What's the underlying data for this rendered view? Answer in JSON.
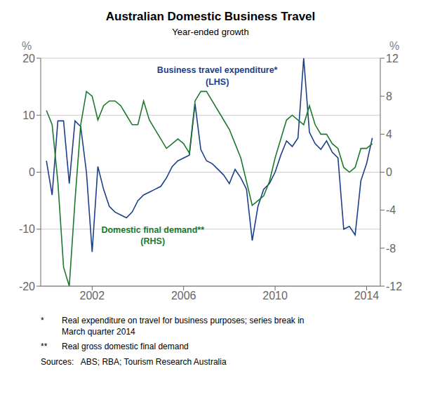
{
  "chart_data": {
    "type": "line",
    "title": "Australian Domestic Business Travel",
    "subtitle": "Year-ended growth",
    "x": [
      2000.0,
      2000.25,
      2000.5,
      2000.75,
      2001.0,
      2001.25,
      2001.5,
      2001.75,
      2002.0,
      2002.25,
      2002.5,
      2002.75,
      2003.0,
      2003.25,
      2003.5,
      2003.75,
      2004.0,
      2004.25,
      2004.5,
      2004.75,
      2005.0,
      2005.25,
      2005.5,
      2005.75,
      2006.0,
      2006.25,
      2006.5,
      2006.75,
      2007.0,
      2007.25,
      2007.5,
      2007.75,
      2008.0,
      2008.25,
      2008.5,
      2008.75,
      2009.0,
      2009.25,
      2009.5,
      2009.75,
      2010.0,
      2010.25,
      2010.5,
      2010.75,
      2011.0,
      2011.25,
      2011.5,
      2011.75,
      2012.0,
      2012.25,
      2012.5,
      2012.75,
      2013.0,
      2013.25,
      2013.5,
      2013.75,
      2014.0,
      2014.25
    ],
    "xlim": [
      1999.75,
      2014.6
    ],
    "xticks": [
      2002,
      2006,
      2010,
      2014
    ],
    "ylabel": "%",
    "y2label": "%",
    "ylim": [
      -20,
      20
    ],
    "yticks": [
      -20,
      -10,
      0,
      10,
      20
    ],
    "y2lim": [
      -12,
      12
    ],
    "y2ticks": [
      -12,
      -8,
      -4,
      0,
      4,
      8,
      12
    ],
    "grid": true,
    "series": [
      {
        "name": "Business travel expenditure*\n(LHS)",
        "color": "#1c3f8c",
        "values": [
          2.0,
          -4.0,
          9.0,
          9.0,
          -2.0,
          9.0,
          8.0,
          0.0,
          -14.0,
          1.0,
          -3.0,
          -6.0,
          -7.0,
          -7.5,
          -8.0,
          -7.0,
          -5.0,
          -4.0,
          -3.5,
          -3.0,
          -2.5,
          -1.0,
          1.0,
          2.0,
          2.5,
          3.0,
          12.0,
          4.0,
          2.0,
          1.5,
          0.5,
          -0.5,
          -2.0,
          0.5,
          -1.0,
          -3.0,
          -12.0,
          -6.0,
          -3.0,
          -2.0,
          0.0,
          3.0,
          5.5,
          4.5,
          6.0,
          20.0,
          7.0,
          5.0,
          4.0,
          5.5,
          3.5,
          2.5,
          -10.0,
          -9.5,
          -11.0,
          -1.5,
          1.5,
          6.0
        ]
      },
      {
        "name": "Domestic final demand**\n(RHS)",
        "color": "#1a7a2a",
        "axis": "y2",
        "values": [
          6.5,
          5.0,
          -1.0,
          -10.0,
          -12.0,
          -3.0,
          5.0,
          8.5,
          8.0,
          5.5,
          7.0,
          7.5,
          7.5,
          7.0,
          6.0,
          5.0,
          5.0,
          7.5,
          5.5,
          4.5,
          3.5,
          2.5,
          3.0,
          3.5,
          3.0,
          2.0,
          7.5,
          8.5,
          8.5,
          7.5,
          6.5,
          5.5,
          4.5,
          3.0,
          1.5,
          -1.0,
          -3.5,
          -3.0,
          -2.5,
          -1.0,
          1.5,
          3.5,
          5.5,
          6.0,
          5.5,
          5.0,
          7.0,
          5.0,
          4.0,
          4.0,
          3.0,
          2.5,
          0.5,
          0.0,
          0.5,
          2.5,
          2.5,
          3.0
        ]
      }
    ],
    "annotations": [
      [
        "*",
        "Real expenditure on travel for business purposes; series break in\nMarch quarter 2014"
      ],
      [
        "**",
        "Real gross domestic final demand"
      ],
      [
        "Sources:   ABS; RBA; Tourism Research Australia"
      ]
    ]
  }
}
